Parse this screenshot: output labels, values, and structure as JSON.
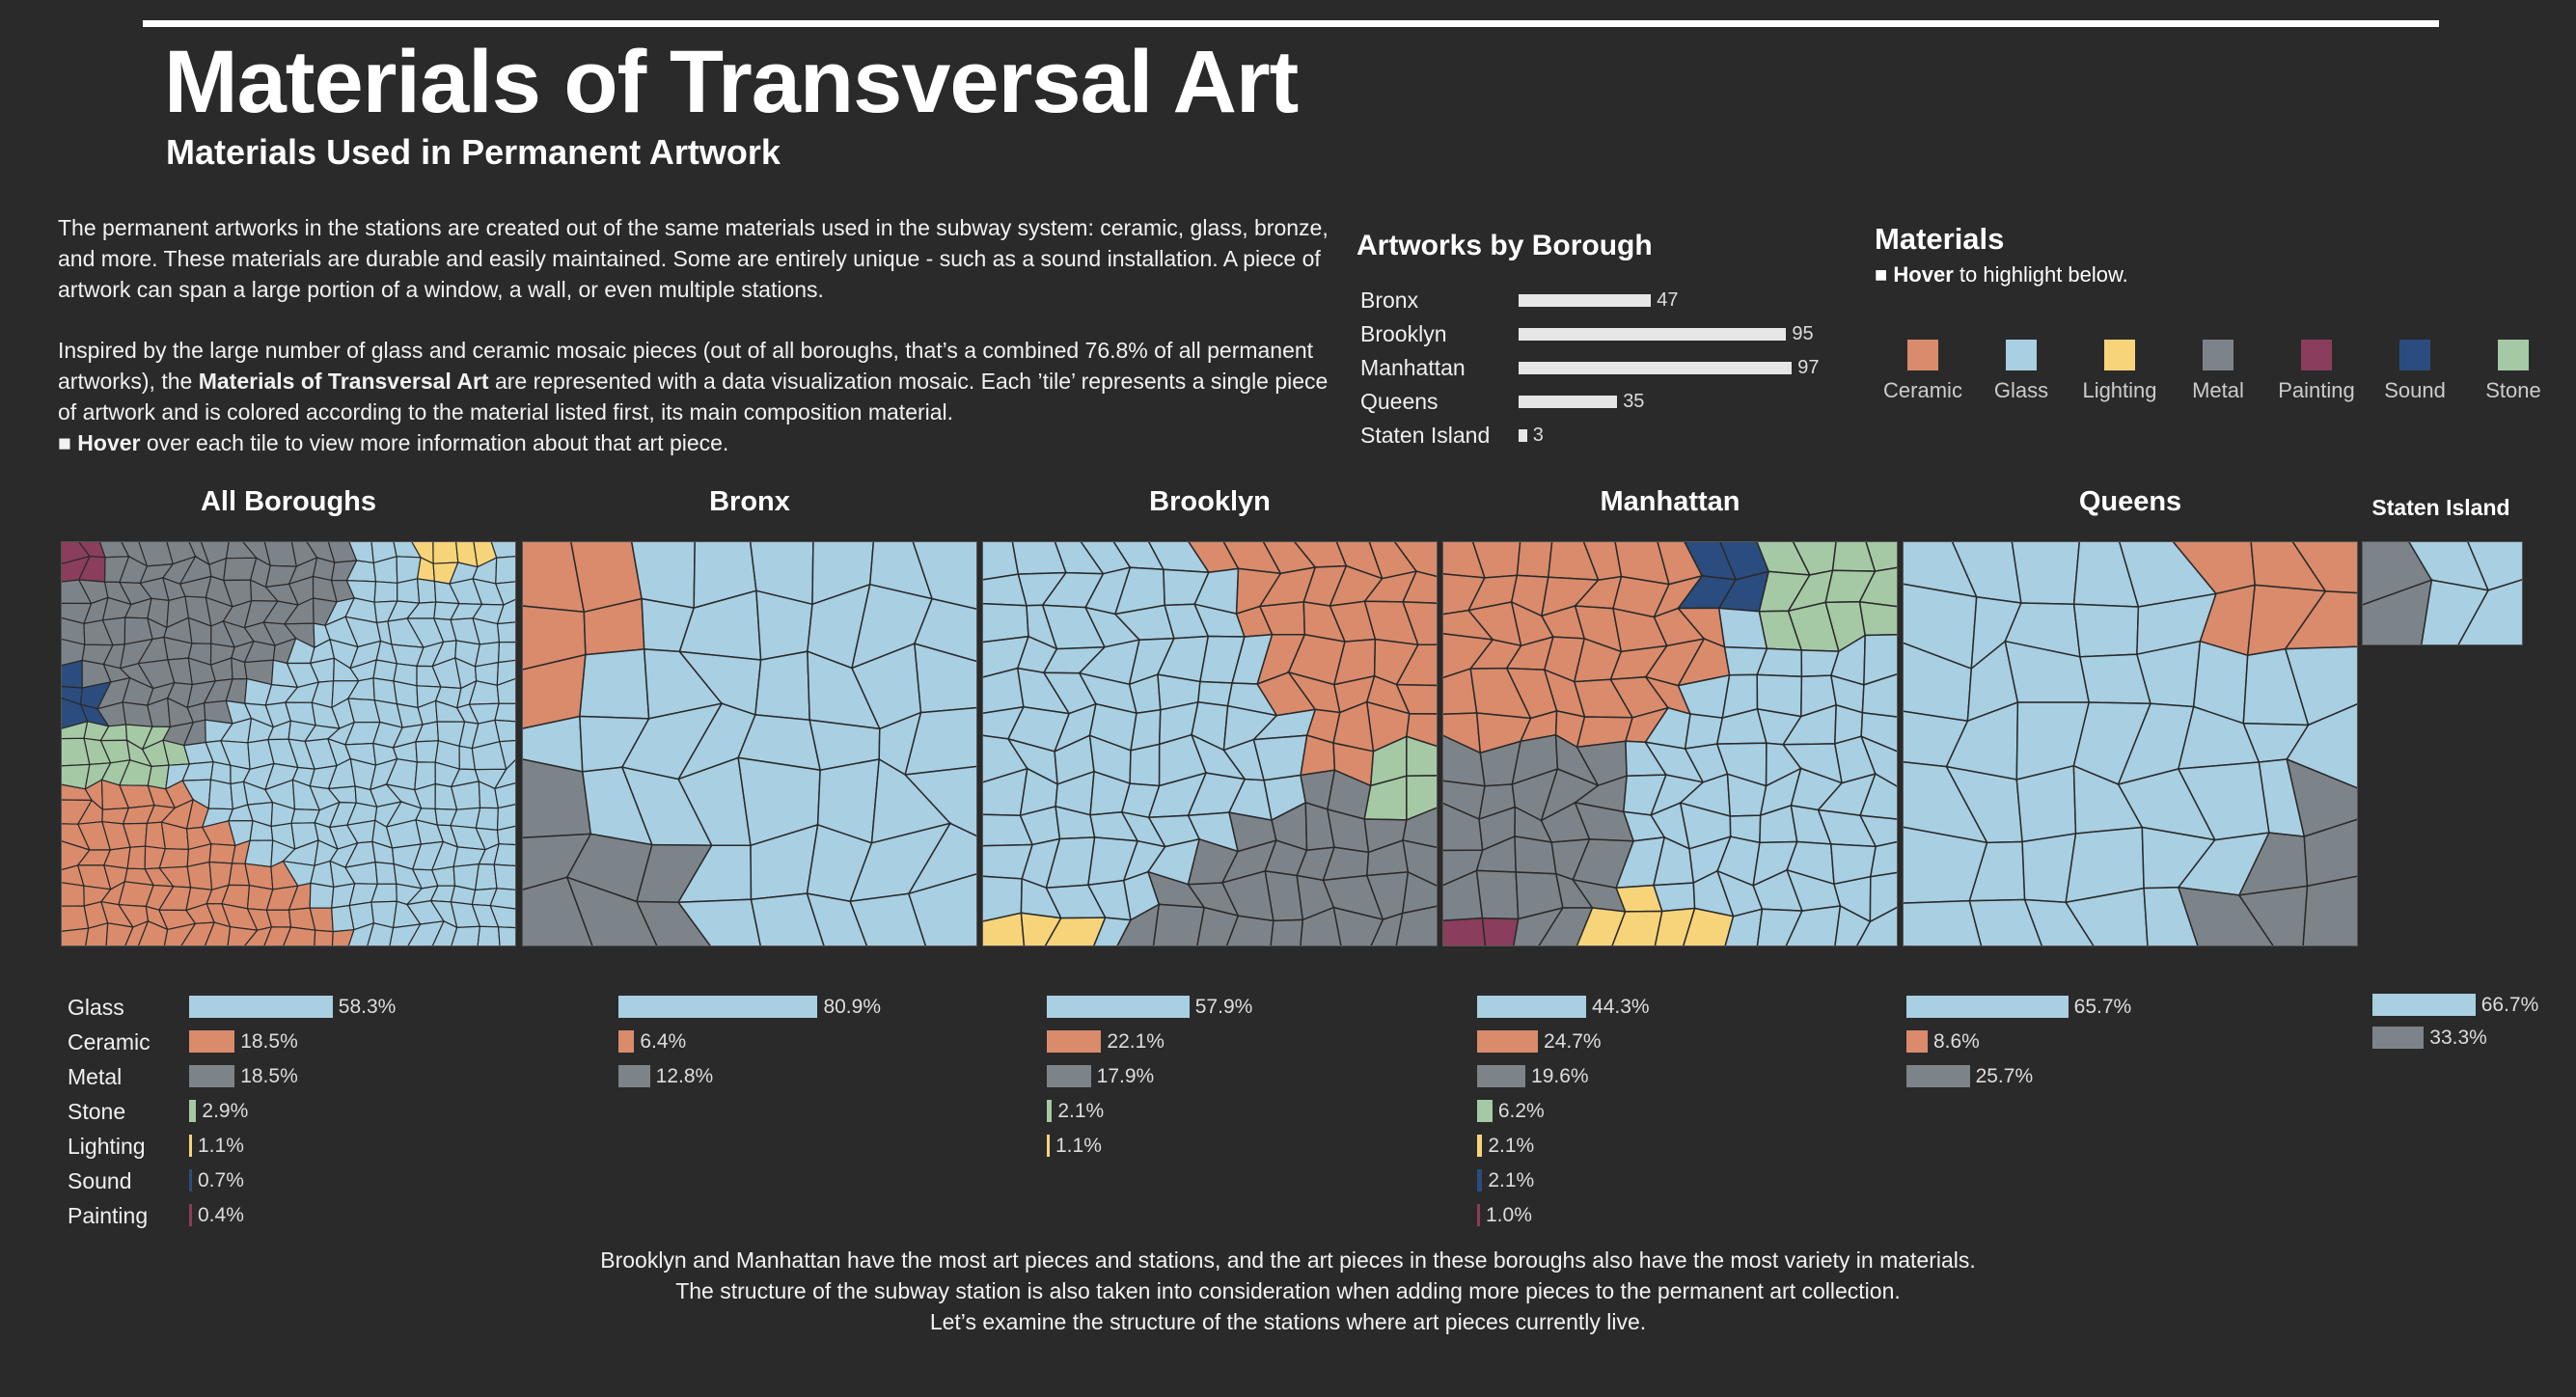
{
  "header": {
    "title": "Materials of Transversal Art",
    "subtitle": "Materials Used in Permanent Artwork"
  },
  "intro": {
    "p1": "The permanent artworks in the stations are created out of the same materials used in the subway system: ceramic, glass, bronze, and more. These materials are durable and easily maintained. Some are entirely unique - such as a sound installation. A piece of artwork can span a large portion of a window, a wall, or even multiple stations.",
    "p2_a": "Inspired by the large number of glass and ceramic mosaic pieces (out of all boroughs, that’s a combined 76.8% of all permanent artworks), the ",
    "p2_bold": "Materials of Transversal Art",
    "p2_b": " are represented with a data visualization mosaic. Each ’tile’ represents a single piece of artwork and is colored according to the material listed first, its main composition material.",
    "hover_bold": "Hover",
    "hover_rest": " over each tile to view more information about that art piece.",
    "bullet": "■"
  },
  "materials_legend": {
    "title": "Materials",
    "hint_bullet": "■",
    "hint_bold": "Hover",
    "hint_rest": " to highlight below.",
    "items": [
      {
        "name": "Ceramic",
        "color": "#d98b6c"
      },
      {
        "name": "Glass",
        "color": "#a8cfe2"
      },
      {
        "name": "Lighting",
        "color": "#f7d47a"
      },
      {
        "name": "Metal",
        "color": "#7d8489"
      },
      {
        "name": "Painting",
        "color": "#8a3d5c"
      },
      {
        "name": "Sound",
        "color": "#2b4c7e"
      },
      {
        "name": "Stone",
        "color": "#a5c9a5"
      }
    ]
  },
  "footer": {
    "line1": "Brooklyn and Manhattan have the most art pieces and stations, and the art pieces in these boroughs also have the most variety in materials. The structure of the subway station is also taken into consideration when adding more pieces to the permanent art collection.",
    "line2": "Let’s examine the structure of the stations where art pieces currently live."
  },
  "chart_data": [
    {
      "type": "bar",
      "title": "Artworks by Borough",
      "categories": [
        "Bronx",
        "Brooklyn",
        "Manhattan",
        "Queens",
        "Staten Island"
      ],
      "values": [
        47,
        95,
        97,
        35,
        3
      ]
    },
    {
      "type": "bar",
      "title": "All Boroughs",
      "categories": [
        "Glass",
        "Ceramic",
        "Metal",
        "Stone",
        "Lighting",
        "Sound",
        "Painting"
      ],
      "values": [
        58.3,
        18.5,
        18.5,
        2.9,
        1.1,
        0.7,
        0.4
      ],
      "labels": [
        "58.3%",
        "18.5%",
        "18.5%",
        "2.9%",
        "1.1%",
        "0.7%",
        "0.4%"
      ]
    },
    {
      "type": "bar",
      "title": "Bronx",
      "categories": [
        "Glass",
        "Ceramic",
        "Metal"
      ],
      "values": [
        80.9,
        6.4,
        12.8
      ],
      "labels": [
        "80.9%",
        "6.4%",
        "12.8%"
      ]
    },
    {
      "type": "bar",
      "title": "Brooklyn",
      "categories": [
        "Glass",
        "Ceramic",
        "Metal",
        "Stone",
        "Lighting"
      ],
      "values": [
        57.9,
        22.1,
        17.9,
        2.1,
        1.1
      ],
      "labels": [
        "57.9%",
        "22.1%",
        "17.9%",
        "2.1%",
        "1.1%"
      ]
    },
    {
      "type": "bar",
      "title": "Manhattan",
      "categories": [
        "Glass",
        "Ceramic",
        "Metal",
        "Stone",
        "Lighting",
        "Sound",
        "Painting"
      ],
      "values": [
        44.3,
        24.7,
        19.6,
        6.2,
        2.1,
        2.1,
        1.0
      ],
      "labels": [
        "44.3%",
        "24.7%",
        "19.6%",
        "6.2%",
        "2.1%",
        "2.1%",
        "1.0%"
      ]
    },
    {
      "type": "bar",
      "title": "Queens",
      "categories": [
        "Glass",
        "Ceramic",
        "Metal"
      ],
      "values": [
        65.7,
        8.6,
        25.7
      ],
      "labels": [
        "65.7%",
        "8.6%",
        "25.7%"
      ]
    },
    {
      "type": "bar",
      "title": "Staten Island",
      "categories": [
        "Glass",
        "Metal"
      ],
      "values": [
        66.7,
        33.3
      ],
      "labels": [
        "66.7%",
        "33.3%"
      ]
    }
  ]
}
